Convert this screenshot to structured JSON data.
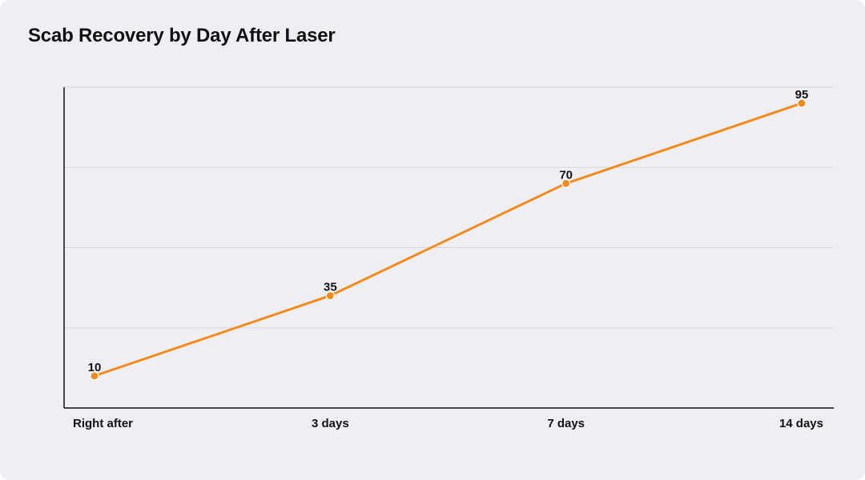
{
  "chart_data": {
    "type": "line",
    "title": "Scab Recovery by Day After Laser",
    "xlabel": "",
    "ylabel": "",
    "categories": [
      "Right after",
      "3 days",
      "7 days",
      "14 days"
    ],
    "series": [
      {
        "values": [
          10,
          35,
          70,
          95
        ],
        "color": "#f28b1e"
      }
    ],
    "ylim": [
      0,
      100
    ],
    "grid": true,
    "legend": "none"
  }
}
